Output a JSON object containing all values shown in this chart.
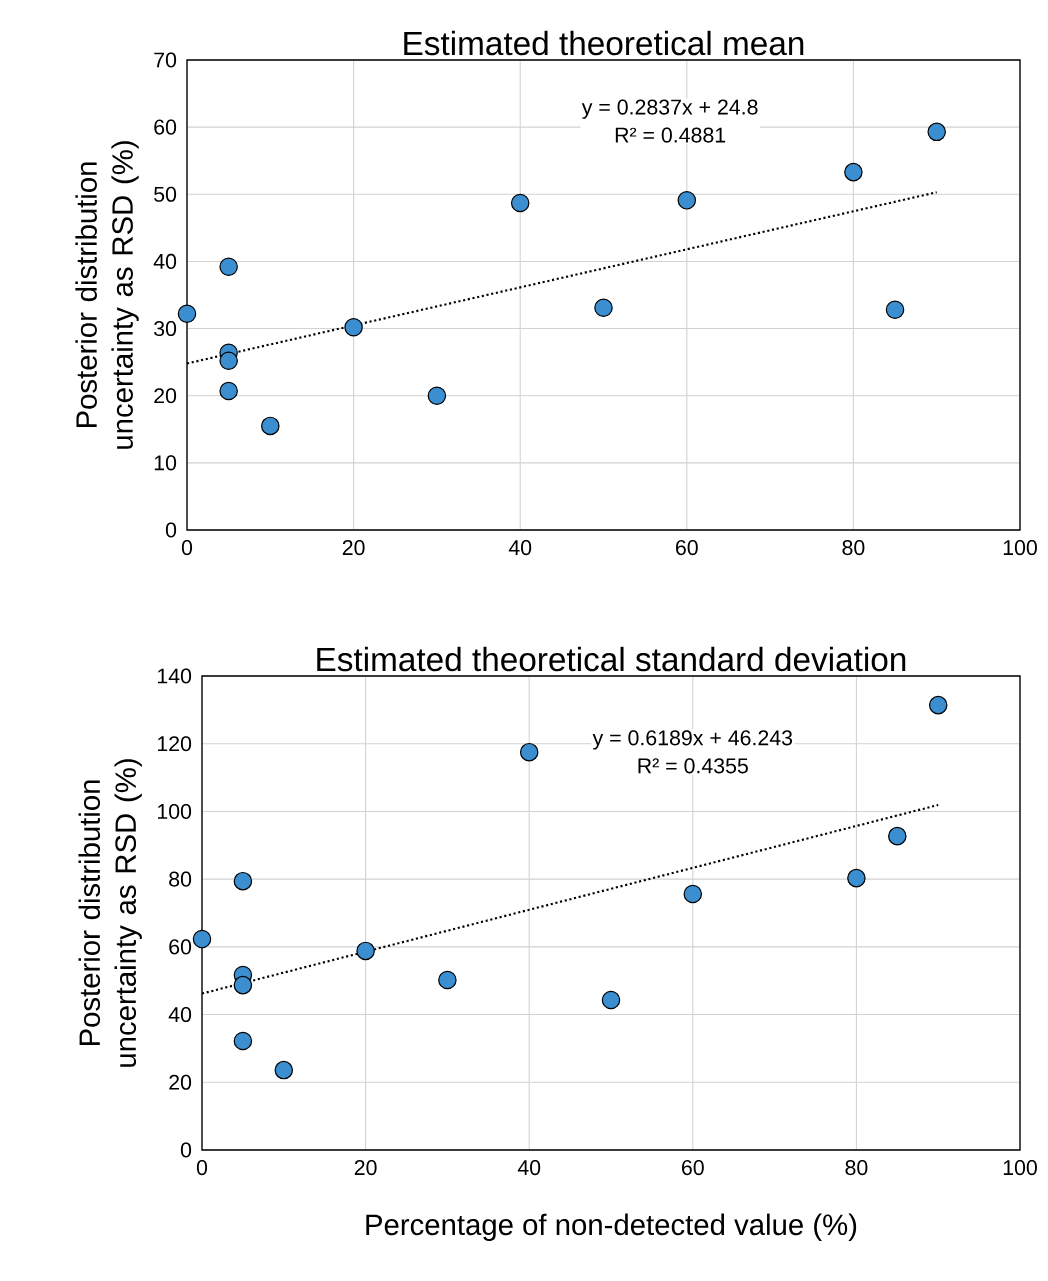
{
  "chart_data": [
    {
      "type": "scatter",
      "title": "Estimated theoretical mean",
      "ylabel": "Posterior distribution uncertainty as RSD (%)",
      "series": [
        {
          "color": "#3b8ed0",
          "marker": "circle",
          "x": [
            0,
            5,
            5,
            5,
            5,
            10,
            20,
            30,
            40,
            50,
            60,
            80,
            85,
            90
          ],
          "values": [
            32.2,
            39.2,
            26.4,
            25.2,
            20.7,
            15.5,
            30.2,
            20.0,
            48.7,
            33.1,
            49.1,
            53.3,
            32.8,
            59.3
          ]
        },
        {
          "type": "line",
          "color": "#000000",
          "line_style": "dotted",
          "marker": "none",
          "x": [
            0,
            90
          ],
          "values": [
            24.8,
            50.3
          ]
        }
      ],
      "annotations": [
        "y = 0.2837x + 24.8",
        "R² = 0.4881"
      ],
      "xlim": [
        0,
        100
      ],
      "xticks": [
        0,
        20,
        40,
        60,
        80,
        100
      ],
      "ylim": [
        0,
        70
      ],
      "yticks": [
        0,
        10,
        20,
        30,
        40,
        50,
        60,
        70
      ],
      "grid": true
    },
    {
      "type": "scatter",
      "title": "Estimated theoretical standard deviation",
      "xlabel": "Percentage of non-detected value (%)",
      "ylabel": "Posterior distribution uncertainty as RSD (%)",
      "series": [
        {
          "color": "#3b8ed0",
          "marker": "circle",
          "x": [
            0,
            5,
            5,
            5,
            5,
            10,
            20,
            30,
            40,
            50,
            60,
            80,
            85,
            90
          ],
          "values": [
            62.3,
            79.4,
            51.7,
            48.7,
            32.2,
            23.6,
            58.8,
            50.2,
            117.5,
            44.3,
            75.6,
            80.3,
            92.7,
            131.4
          ]
        },
        {
          "type": "line",
          "color": "#000000",
          "line_style": "dotted",
          "marker": "none",
          "x": [
            0,
            90
          ],
          "values": [
            46.2,
            101.9
          ]
        }
      ],
      "annotations": [
        "y = 0.6189x + 46.243",
        "R² = 0.4355"
      ],
      "xlim": [
        0,
        100
      ],
      "xticks": [
        0,
        20,
        40,
        60,
        80,
        100
      ],
      "ylim": [
        0,
        140
      ],
      "yticks": [
        0,
        20,
        40,
        60,
        80,
        100,
        120,
        140
      ],
      "grid": true
    }
  ]
}
